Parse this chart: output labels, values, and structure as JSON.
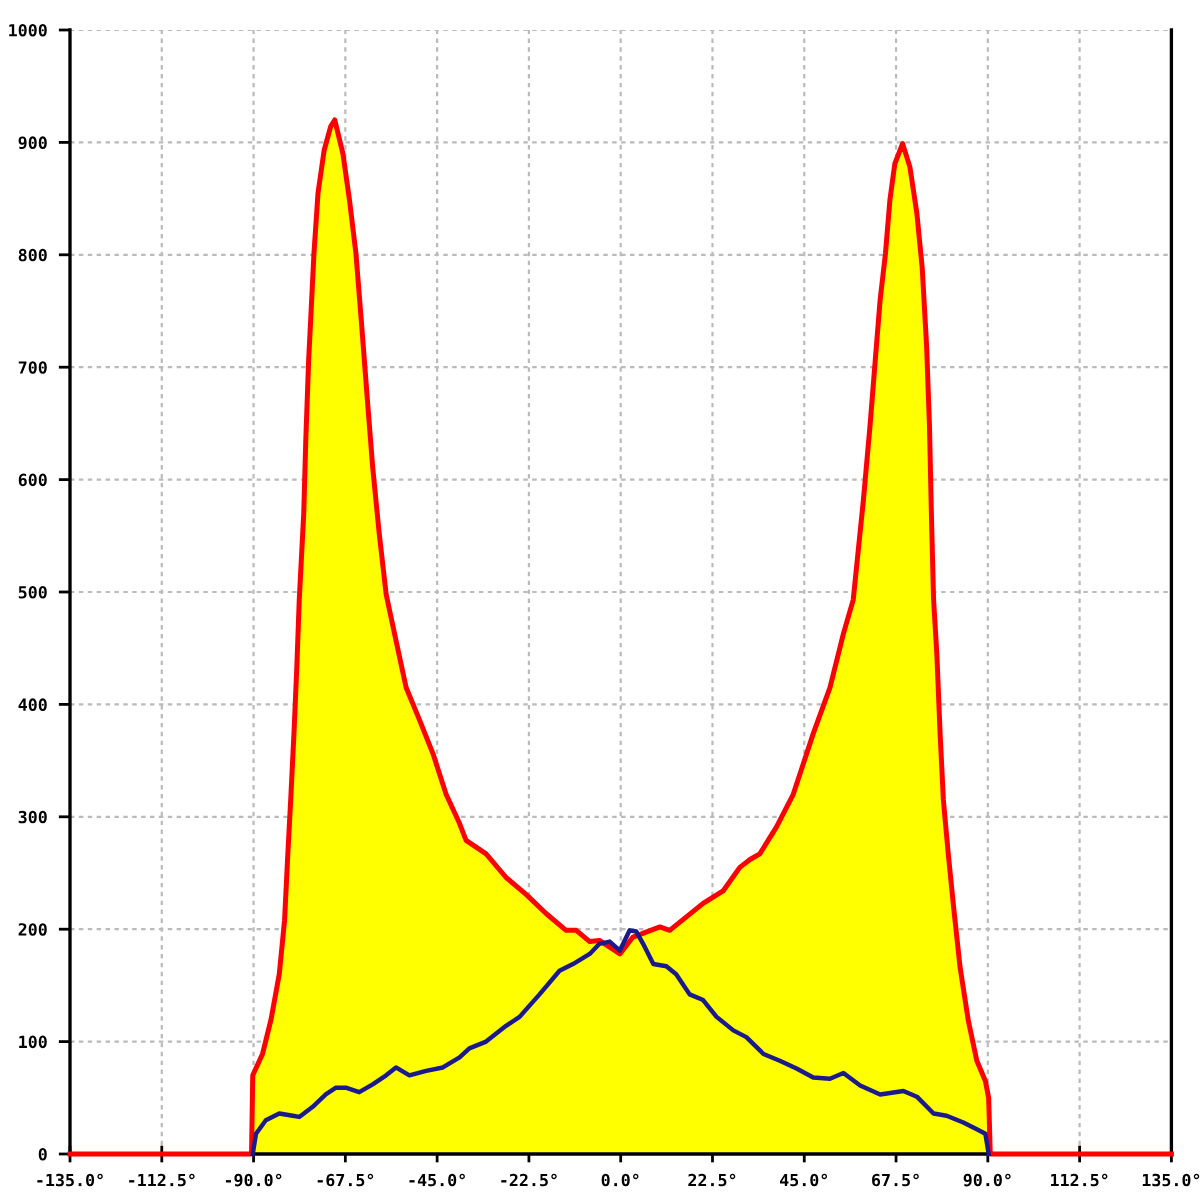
{
  "chart_data": {
    "type": "area",
    "xlim": [
      -135,
      135
    ],
    "xticks": [
      {
        "value": -135,
        "label": "-135.0°"
      },
      {
        "value": -112.5,
        "label": "-112.5°"
      },
      {
        "value": -90,
        "label": "-90.0°"
      },
      {
        "value": -67.5,
        "label": "-67.5°"
      },
      {
        "value": -45,
        "label": "-45.0°"
      },
      {
        "value": -22.5,
        "label": "-22.5°"
      },
      {
        "value": 0,
        "label": "0.0°"
      },
      {
        "value": 22.5,
        "label": "22.5°"
      },
      {
        "value": 45,
        "label": "45.0°"
      },
      {
        "value": 67.5,
        "label": "67.5°"
      },
      {
        "value": 90,
        "label": "90.0°"
      },
      {
        "value": 112.5,
        "label": "112.5°"
      },
      {
        "value": 135,
        "label": "135.0°"
      }
    ],
    "ylim": [
      0,
      1000
    ],
    "yticks": [
      0,
      100,
      200,
      300,
      400,
      500,
      600,
      700,
      800,
      900,
      1000
    ],
    "grid": true,
    "series": [
      {
        "color": "#ffff00",
        "x": [
          -135,
          -90.5,
          -90.2,
          -87.8,
          -85.7,
          -83.7,
          -82.4,
          -81.6,
          -80.9,
          -80.1,
          -79.4,
          -78.8,
          -77.7,
          -77.2,
          -76.5,
          -76.0,
          -75.2,
          -74.2,
          -72.7,
          -71.1,
          -70.1,
          -68.1,
          -66.5,
          -64.9,
          -63.6,
          -62.1,
          -60.8,
          -59.2,
          -57.5,
          -55.1,
          -52.6,
          -49.3,
          -46.0,
          -42.8,
          -39.5,
          -37.9,
          -33.0,
          -28.1,
          -23.2,
          -18.3,
          -13.4,
          -10.9,
          -7.6,
          -5.2,
          -0.2,
          3.0,
          9.6,
          12.0,
          16.1,
          20.2,
          25.1,
          29.2,
          31.7,
          34.1,
          38.2,
          42.3,
          47.2,
          51.3,
          54.6,
          57.0,
          59.5,
          61.1,
          62.4,
          63.6,
          64.9,
          66.0,
          67.2,
          69.1,
          70.9,
          72.6,
          73.9,
          75.0,
          75.7,
          76.2,
          76.7,
          77.5,
          78.3,
          79.1,
          80.3,
          81.6,
          83.2,
          85.2,
          87.3,
          89.4,
          90.2,
          90.6,
          135
        ],
        "values": [
          0,
          0,
          70,
          89,
          120,
          160,
          208,
          267,
          315,
          374,
          433,
          493,
          570,
          635,
          706,
          742,
          801,
          855,
          893,
          914,
          920,
          890,
          849,
          801,
          742,
          671,
          611,
          552,
          498,
          457,
          415,
          386,
          356,
          320,
          294,
          279,
          267,
          246,
          231,
          214,
          199,
          199,
          189,
          190,
          178,
          193,
          202,
          199,
          211,
          223,
          234,
          255,
          262,
          267,
          291,
          320,
          374,
          415,
          463,
          493,
          582,
          647,
          706,
          760,
          801,
          849,
          881,
          899,
          878,
          837,
          789,
          718,
          647,
          564,
          493,
          445,
          374,
          315,
          267,
          220,
          166,
          119,
          83,
          65,
          50,
          0,
          0
        ]
      },
      {
        "type": "line",
        "color": "#1a1a8c",
        "x": [
          -90.2,
          -89.4,
          -87.0,
          -83.7,
          -80.4,
          -78.8,
          -75.5,
          -72.3,
          -69.8,
          -67.4,
          -64.1,
          -60.8,
          -57.5,
          -55.1,
          -51.8,
          -47.7,
          -43.6,
          -39.5,
          -37.1,
          -33.0,
          -28.1,
          -24.8,
          -19.9,
          -15.0,
          -11.7,
          -7.6,
          -5.2,
          -2.7,
          -0.2,
          2.2,
          3.8,
          5.5,
          8.0,
          11.2,
          13.6,
          16.9,
          20.2,
          23.5,
          27.6,
          30.8,
          35.0,
          39.0,
          43.1,
          47.2,
          51.3,
          54.6,
          58.7,
          63.6,
          69.3,
          72.6,
          76.7,
          79.9,
          84.0,
          87.3,
          89.4,
          90.2
        ],
        "values": [
          0,
          18,
          30,
          36,
          34,
          33,
          42,
          53,
          59,
          59,
          55,
          62,
          70,
          77,
          70,
          74,
          77,
          86,
          94,
          100,
          114,
          122,
          142,
          163,
          169,
          178,
          187,
          189,
          181,
          199,
          198,
          187,
          169,
          167,
          160,
          142,
          137,
          122,
          110,
          104,
          89,
          83,
          76,
          68,
          67,
          72,
          61,
          53,
          56,
          51,
          36,
          34,
          28,
          22,
          18,
          0
        ]
      }
    ]
  }
}
